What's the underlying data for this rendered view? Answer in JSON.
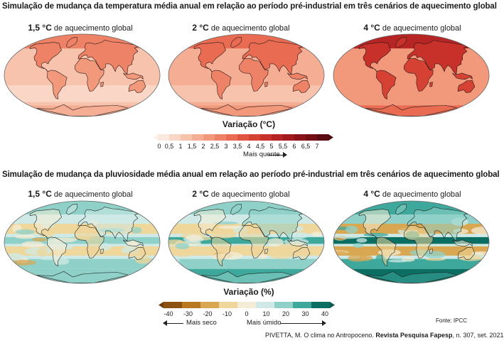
{
  "temperature": {
    "title": "Simulação de mudança da temperatura média anual em relação ao período pré-industrial em três cenários de aquecimento global",
    "scenarios": [
      {
        "level": "1,5 °C",
        "suffix": "de aquecimento global",
        "intensity": 0.25
      },
      {
        "level": "2 °C",
        "suffix": "de aquecimento global",
        "intensity": 0.4
      },
      {
        "level": "4 °C",
        "suffix": "de aquecimento global",
        "intensity": 0.85
      }
    ],
    "colorbar": {
      "title": "Variação (°C)",
      "ticks": [
        "0",
        "0,5",
        "1",
        "1,5",
        "2",
        "2,5",
        "3",
        "3,5",
        "4",
        "4,5",
        "5",
        "5,5",
        "6",
        "6,5",
        "7"
      ],
      "colors": [
        "#fbe9e0",
        "#fad6c6",
        "#f8c3ad",
        "#f5ae94",
        "#f2987b",
        "#ee8266",
        "#e86b52",
        "#e05541",
        "#d54234",
        "#c7312a",
        "#b62424",
        "#a11a1e",
        "#8a1319",
        "#720e14",
        "#5a0a10"
      ],
      "note": "Mais quente"
    }
  },
  "precipitation": {
    "title": "Simulação de mudança da pluviosidade média anual em relação ao período pré-industrial em três cenários de aquecimento global",
    "scenarios": [
      {
        "level": "1,5 °C",
        "suffix": "de aquecimento global",
        "intensity": 0.3
      },
      {
        "level": "2 °C",
        "suffix": "de aquecimento global",
        "intensity": 0.45
      },
      {
        "level": "4 °C",
        "suffix": "de aquecimento global",
        "intensity": 0.9
      }
    ],
    "colorbar": {
      "title": "Variação (%)",
      "ticks": [
        "-40",
        "-30",
        "-20",
        "-10",
        "0",
        "10",
        "20",
        "30",
        "40"
      ],
      "colors": [
        "#8c5212",
        "#b8791f",
        "#d9a751",
        "#efd69b",
        "#f4ecd6",
        "#cfeae6",
        "#8fd1c8",
        "#3fa89c",
        "#0b6e62"
      ],
      "note_dry": "Mais seco",
      "note_wet": "Mais úmido"
    }
  },
  "source": "Fonte: IPCC",
  "credit": {
    "author": "PIVETTA, M. O clima no Antropoceno.",
    "journal": "Revista Pesquisa Fapesp",
    "details": ", n. 307, set. 2021"
  }
}
